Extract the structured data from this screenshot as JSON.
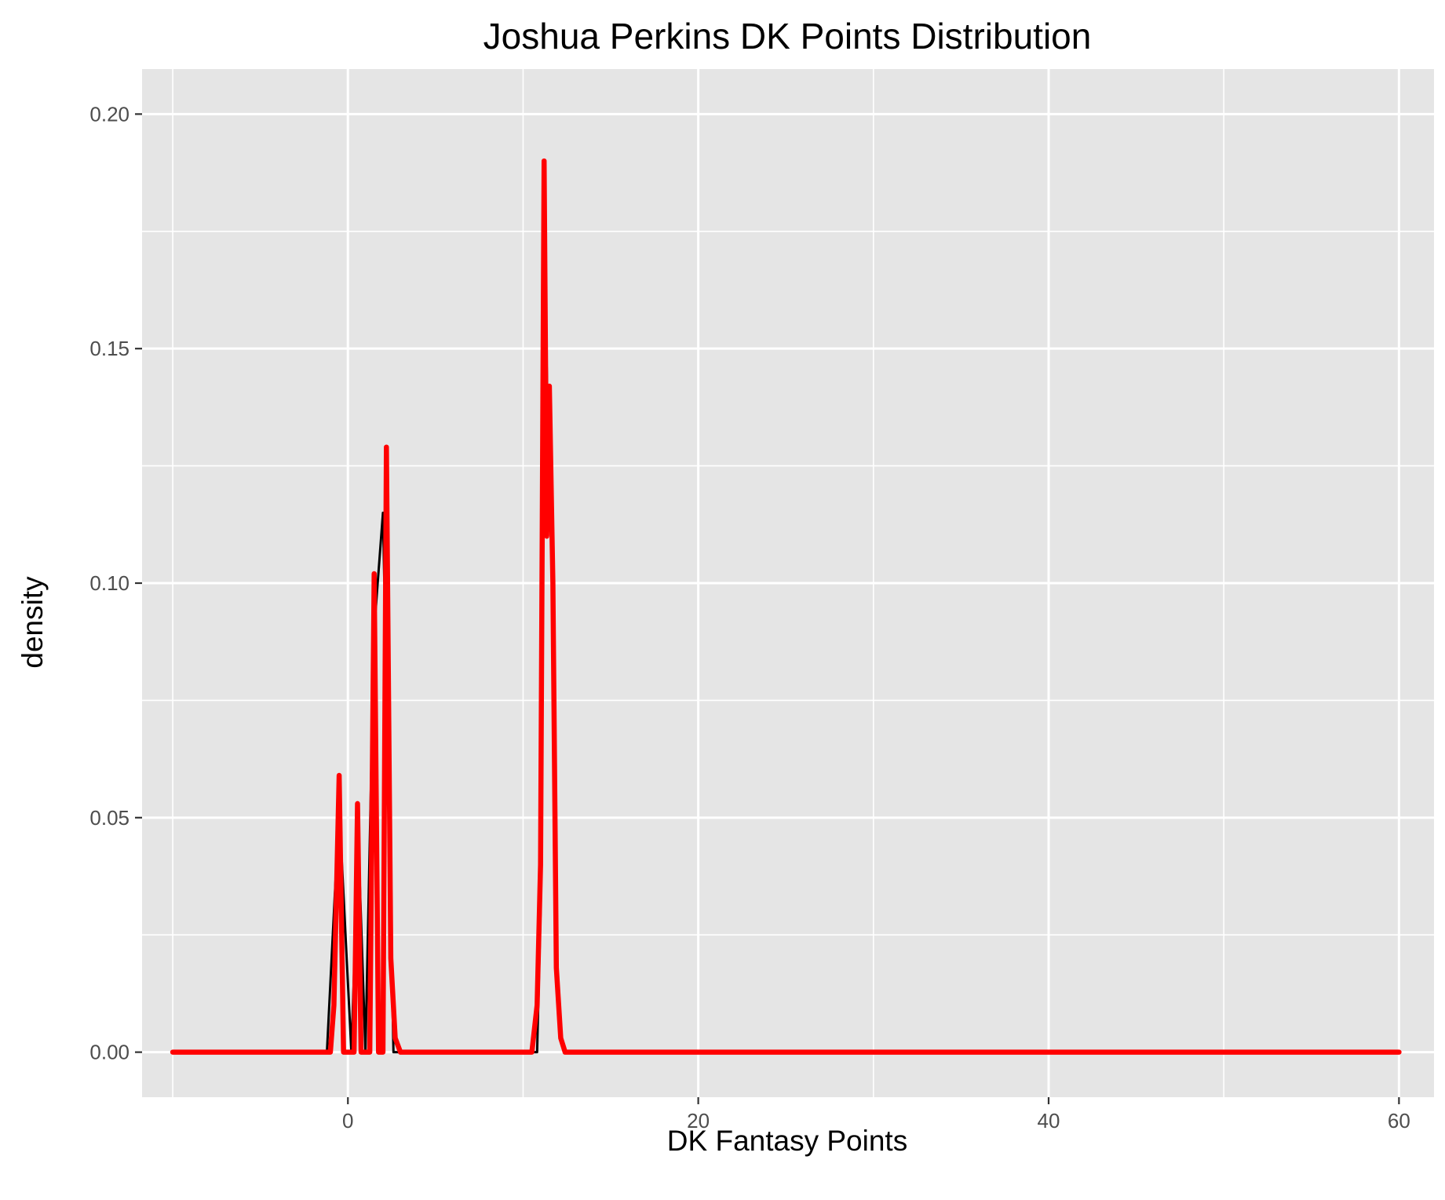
{
  "chart_data": {
    "type": "line",
    "title": "Joshua Perkins DK Points Distribution",
    "xlabel": "DK Fantasy Points",
    "ylabel": "density",
    "xlim": [
      -11.75,
      62
    ],
    "ylim": [
      -0.0096,
      0.2096
    ],
    "x_ticks": [
      0,
      20,
      40,
      60
    ],
    "x_tick_labels": [
      "0",
      "20",
      "40",
      "60"
    ],
    "y_ticks": [
      0,
      0.05,
      0.1,
      0.15,
      0.2
    ],
    "y_tick_labels": [
      "0.00",
      "0.05",
      "0.10",
      "0.15",
      "0.20"
    ],
    "grid": true,
    "background_color": "#e5e5e5",
    "grid_color": "#ffffff",
    "series": [
      {
        "color": "#000000",
        "x": [
          -10,
          -1.2,
          -0.5,
          0.2,
          0.6,
          1.0,
          1.5,
          2.0,
          2.6,
          3.5,
          10.8,
          11.0,
          11.2,
          11.45,
          11.65,
          11.85,
          12.1,
          12.4,
          60
        ],
        "y": [
          0,
          0,
          0.052,
          0,
          0.045,
          0,
          0.09,
          0.115,
          0,
          0,
          0,
          0.03,
          0.17,
          0.13,
          0.12,
          0.02,
          0.004,
          0,
          0
        ]
      },
      {
        "color": "#ff0000",
        "x": [
          -10,
          -1.0,
          -0.8,
          -0.5,
          -0.25,
          0.2,
          0.35,
          0.55,
          0.75,
          0.95,
          1.25,
          1.5,
          1.75,
          2.0,
          2.2,
          2.45,
          2.7,
          3.0,
          10.5,
          10.8,
          11.0,
          11.2,
          11.35,
          11.5,
          11.7,
          11.9,
          12.15,
          12.4,
          60
        ],
        "y": [
          0,
          0,
          0.01,
          0.059,
          0,
          0,
          0,
          0.053,
          0,
          0,
          0,
          0.102,
          0,
          0,
          0.129,
          0.02,
          0.003,
          0,
          0,
          0.01,
          0.04,
          0.19,
          0.11,
          0.142,
          0.1,
          0.018,
          0.003,
          0,
          0
        ]
      }
    ]
  }
}
